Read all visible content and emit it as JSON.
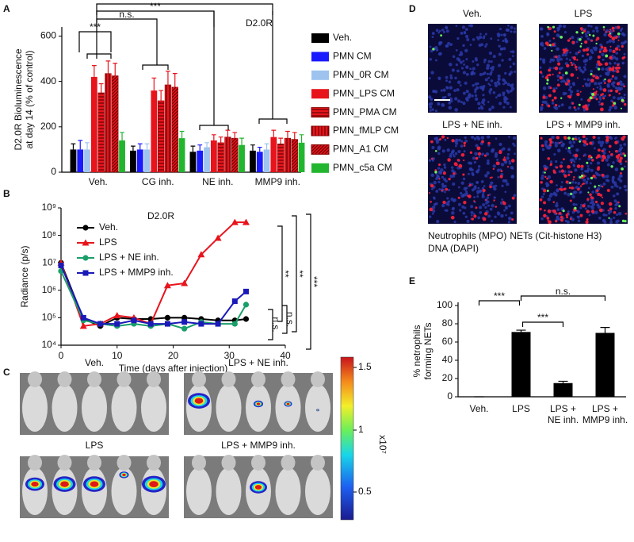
{
  "panel_letters": [
    "A",
    "B",
    "C",
    "D",
    "E"
  ],
  "chart_data": [
    {
      "type": "bar",
      "title": "D2.0R",
      "y_label": [
        "D2.0R Bioluminescence",
        "at day 14 (% of control)"
      ],
      "categories": [
        "Veh.",
        "CG inh.",
        "NE inh.",
        "MMP9 inh."
      ],
      "series": [
        {
          "name": "Veh.",
          "color": "#000000",
          "values": [
            100,
            95,
            90,
            95
          ],
          "errors": [
            25,
            20,
            25,
            25
          ]
        },
        {
          "name": "PMN CM",
          "color": "#1a1aff",
          "values": [
            100,
            100,
            95,
            90
          ],
          "errors": [
            40,
            25,
            25,
            20
          ]
        },
        {
          "name": "PMN_0R CM",
          "color": "#9dc3ee",
          "values": [
            100,
            100,
            110,
            100
          ],
          "errors": [
            30,
            25,
            20,
            25
          ]
        },
        {
          "name": "PMN_LPS CM",
          "color": "#e8141c",
          "values": [
            420,
            360,
            140,
            155
          ],
          "errors": [
            50,
            55,
            25,
            30
          ]
        },
        {
          "name": "PMN_PMA CM",
          "color": "#e8141c",
          "hatch": "horizontal",
          "values": [
            350,
            315,
            130,
            125
          ],
          "errors": [
            40,
            45,
            25,
            25
          ]
        },
        {
          "name": "PMN_fMLP CM",
          "color": "#e8141c",
          "hatch": "vertical",
          "values": [
            435,
            385,
            155,
            150
          ],
          "errors": [
            55,
            60,
            30,
            30
          ]
        },
        {
          "name": "PMN_A1 CM",
          "color": "#e8141c",
          "hatch": "diagonal",
          "values": [
            425,
            375,
            150,
            145
          ],
          "errors": [
            55,
            60,
            25,
            30
          ]
        },
        {
          "name": "PMN_c5a CM",
          "color": "#22b52e",
          "values": [
            140,
            150,
            120,
            130
          ],
          "errors": [
            35,
            30,
            30,
            35
          ]
        }
      ],
      "ylim": [
        0,
        640
      ],
      "yticks": [
        0,
        200,
        400,
        600
      ],
      "annotations": [
        "***",
        "n.s.",
        "***",
        "**"
      ]
    },
    {
      "type": "line",
      "title": "D2.0R",
      "x_label": "Time (days after injection)",
      "y_label": "Radiance (p/s)",
      "log_y": true,
      "x": [
        0,
        4,
        7,
        10,
        13,
        16,
        19,
        22,
        25,
        28,
        31,
        33
      ],
      "series": [
        {
          "name": "Veh.",
          "color": "#000000",
          "marker": "circle",
          "values": [
            10000000,
            90000,
            50000,
            100000,
            90000,
            90000,
            100000,
            100000,
            90000,
            80000,
            80000,
            90000
          ]
        },
        {
          "name": "LPS",
          "color": "#e8141c",
          "marker": "triangle",
          "values": [
            10000000,
            50000,
            60000,
            120000,
            100000,
            60000,
            1500000,
            1800000,
            20000000,
            80000000,
            300000000,
            300000000
          ]
        },
        {
          "name": "LPS +  NE inh.",
          "color": "#1a9e6a",
          "marker": "circle",
          "values": [
            5000000,
            80000,
            60000,
            50000,
            60000,
            50000,
            60000,
            40000,
            70000,
            60000,
            60000,
            300000
          ]
        },
        {
          "name": "LPS +  MMP9 inh.",
          "color": "#1a1ab8",
          "marker": "square",
          "values": [
            8000000,
            100000,
            60000,
            60000,
            80000,
            60000,
            60000,
            70000,
            60000,
            60000,
            400000,
            900000
          ]
        }
      ],
      "xlim": [
        0,
        40
      ],
      "xticks": [
        0,
        10,
        20,
        30,
        40
      ],
      "ylim": [
        10000,
        1000000000
      ],
      "yticks": [
        {
          "value": 10000,
          "label": "10⁴"
        },
        {
          "value": 100000,
          "label": "10⁵"
        },
        {
          "value": 1000000,
          "label": "10⁶"
        },
        {
          "value": 10000000,
          "label": "10⁷"
        },
        {
          "value": 100000000,
          "label": "10⁸"
        },
        {
          "value": 1000000000,
          "label": "10⁹"
        }
      ],
      "annotations": [
        "**",
        "**",
        "***",
        "n.s.",
        "n.s."
      ]
    },
    {
      "type": "bar",
      "y_label": [
        "% netrophils",
        "forming NETs"
      ],
      "categories": [
        [
          "Veh."
        ],
        [
          "LPS"
        ],
        [
          "LPS +",
          "NE inh."
        ],
        [
          "LPS +",
          "MMP9 inh."
        ]
      ],
      "values": [
        0,
        71,
        15,
        70
      ],
      "errors": [
        0,
        2,
        2,
        6
      ],
      "color": "#000000",
      "ylim": [
        0,
        100
      ],
      "yticks": [
        0,
        20,
        40,
        60,
        80,
        100
      ],
      "annotations": [
        "***",
        "***",
        "n.s."
      ]
    }
  ],
  "panel_c": {
    "labels": [
      "Veh.",
      "LPS + NE inh.",
      "LPS",
      "LPS + MMP9 inh."
    ],
    "colorbar_ticks": [
      "1.5",
      "1",
      "0.5"
    ],
    "colorbar_unit": "x10⁷"
  },
  "panel_d": {
    "labels": [
      "Veh.",
      "LPS",
      "LPS + NE inh.",
      "LPS + MMP9 inh."
    ],
    "legend": [
      {
        "text": "Neutrophils (MPO)",
        "color": "#e8203a"
      },
      {
        "text": "NETs (Cit-histone H3)",
        "color": "#1f9e4e"
      },
      {
        "text": "DNA (DAPI)",
        "color": "#2a3aa8"
      }
    ]
  }
}
